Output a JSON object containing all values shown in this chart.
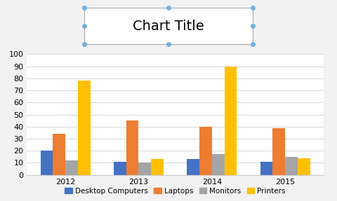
{
  "title": "Chart Title",
  "years": [
    "2012",
    "2013",
    "2014",
    "2015"
  ],
  "series": {
    "Desktop Computers": [
      20,
      11,
      13,
      11
    ],
    "Laptops": [
      34,
      45,
      40,
      39
    ],
    "Monitors": [
      12,
      10,
      17,
      15
    ],
    "Printers": [
      78,
      13,
      90,
      14
    ]
  },
  "colors": {
    "Desktop Computers": "#4472C4",
    "Laptops": "#ED7D31",
    "Monitors": "#A5A5A5",
    "Printers": "#FFC000"
  },
  "ylim": [
    0,
    100
  ],
  "yticks": [
    0,
    10,
    20,
    30,
    40,
    50,
    60,
    70,
    80,
    90,
    100
  ],
  "bg_color": "#F2F2F2",
  "plot_bg_color": "#FFFFFF",
  "grid_color": "#D9D9D9",
  "title_fontsize": 14,
  "legend_fontsize": 7.5,
  "tick_fontsize": 8,
  "bar_width": 0.17
}
